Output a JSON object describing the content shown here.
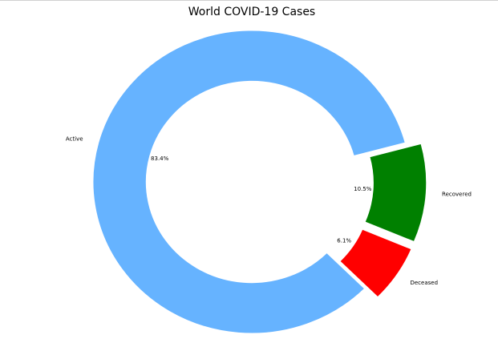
{
  "chart_data": {
    "type": "pie",
    "variant": "donut",
    "title": "World COVID-19 Cases",
    "categories": [
      "Active",
      "Deceased",
      "Recovered"
    ],
    "values": [
      83.4,
      6.1,
      10.5
    ],
    "value_labels": [
      "83.4%",
      "6.1%",
      "10.5%"
    ],
    "colors": [
      "#66b3ff",
      "#ff0000",
      "#008000"
    ],
    "exploded": [
      false,
      true,
      true
    ],
    "legend": "none"
  }
}
